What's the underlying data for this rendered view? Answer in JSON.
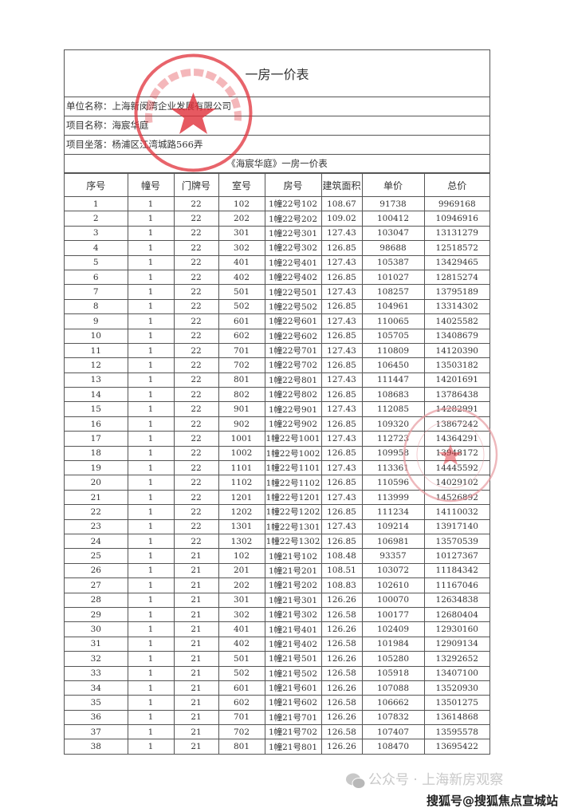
{
  "document": {
    "title": "一房一价表",
    "company_line": "单位名称：上海新闵湾企业发展有限公司",
    "project_line": "项目名称：海宸华庭",
    "location_line": "项目坐落：杨浦区江湾城路566弄",
    "subtitle": "《海宸华庭》一房一价表",
    "seal_color": "#e0303a",
    "seal_text": "上海新闵湾企业发展有限公司"
  },
  "table": {
    "headers": [
      "序号",
      "幢号",
      "门牌号",
      "室号",
      "房号",
      "建筑面积",
      "单价",
      "总价"
    ],
    "rows": [
      [
        "1",
        "1",
        "22",
        "102",
        "1幢22号102",
        "108.67",
        "91738",
        "9969168"
      ],
      [
        "2",
        "1",
        "22",
        "202",
        "1幢22号202",
        "109.02",
        "100412",
        "10946916"
      ],
      [
        "3",
        "1",
        "22",
        "301",
        "1幢22号301",
        "127.43",
        "103047",
        "13131279"
      ],
      [
        "4",
        "1",
        "22",
        "302",
        "1幢22号302",
        "126.85",
        "98688",
        "12518572"
      ],
      [
        "5",
        "1",
        "22",
        "401",
        "1幢22号401",
        "127.43",
        "105387",
        "13429465"
      ],
      [
        "6",
        "1",
        "22",
        "402",
        "1幢22号402",
        "126.85",
        "101027",
        "12815274"
      ],
      [
        "7",
        "1",
        "22",
        "501",
        "1幢22号501",
        "127.43",
        "108257",
        "13795189"
      ],
      [
        "8",
        "1",
        "22",
        "502",
        "1幢22号502",
        "126.85",
        "104961",
        "13314302"
      ],
      [
        "9",
        "1",
        "22",
        "601",
        "1幢22号601",
        "127.43",
        "110065",
        "14025582"
      ],
      [
        "10",
        "1",
        "22",
        "602",
        "1幢22号602",
        "126.85",
        "105705",
        "13408679"
      ],
      [
        "11",
        "1",
        "22",
        "701",
        "1幢22号701",
        "127.43",
        "110809",
        "14120390"
      ],
      [
        "12",
        "1",
        "22",
        "702",
        "1幢22号702",
        "126.85",
        "106450",
        "13503182"
      ],
      [
        "13",
        "1",
        "22",
        "801",
        "1幢22号801",
        "127.43",
        "111447",
        "14201691"
      ],
      [
        "14",
        "1",
        "22",
        "802",
        "1幢22号802",
        "126.85",
        "108683",
        "13786438"
      ],
      [
        "15",
        "1",
        "22",
        "901",
        "1幢22号901",
        "127.43",
        "112085",
        "14282991"
      ],
      [
        "16",
        "1",
        "22",
        "902",
        "1幢22号902",
        "126.85",
        "109320",
        "13867242"
      ],
      [
        "17",
        "1",
        "22",
        "1001",
        "1幢22号1001",
        "127.43",
        "112723",
        "14364291"
      ],
      [
        "18",
        "1",
        "22",
        "1002",
        "1幢22号1002",
        "126.85",
        "109958",
        "13948172"
      ],
      [
        "19",
        "1",
        "22",
        "1101",
        "1幢22号1101",
        "127.43",
        "113361",
        "14445592"
      ],
      [
        "20",
        "1",
        "22",
        "1102",
        "1幢22号1102",
        "126.85",
        "110596",
        "14029102"
      ],
      [
        "21",
        "1",
        "22",
        "1201",
        "1幢22号1201",
        "127.43",
        "113999",
        "14526892"
      ],
      [
        "22",
        "1",
        "22",
        "1202",
        "1幢22号1202",
        "126.85",
        "111234",
        "14110032"
      ],
      [
        "23",
        "1",
        "22",
        "1301",
        "1幢22号1301",
        "127.43",
        "109214",
        "13917140"
      ],
      [
        "24",
        "1",
        "22",
        "1302",
        "1幢22号1302",
        "126.85",
        "106981",
        "13570539"
      ],
      [
        "25",
        "1",
        "21",
        "102",
        "1幢21号102",
        "108.48",
        "93357",
        "10127367"
      ],
      [
        "26",
        "1",
        "21",
        "201",
        "1幢21号201",
        "108.51",
        "103072",
        "11184342"
      ],
      [
        "27",
        "1",
        "21",
        "202",
        "1幢21号202",
        "108.83",
        "102610",
        "11167046"
      ],
      [
        "28",
        "1",
        "21",
        "301",
        "1幢21号301",
        "126.26",
        "100070",
        "12634838"
      ],
      [
        "29",
        "1",
        "21",
        "302",
        "1幢21号302",
        "126.58",
        "100177",
        "12680404"
      ],
      [
        "30",
        "1",
        "21",
        "401",
        "1幢21号401",
        "126.26",
        "102409",
        "12930160"
      ],
      [
        "31",
        "1",
        "21",
        "402",
        "1幢21号402",
        "126.58",
        "101984",
        "12909134"
      ],
      [
        "32",
        "1",
        "21",
        "501",
        "1幢21号501",
        "126.26",
        "105280",
        "13292652"
      ],
      [
        "33",
        "1",
        "21",
        "502",
        "1幢21号502",
        "126.58",
        "105918",
        "13407100"
      ],
      [
        "34",
        "1",
        "21",
        "601",
        "1幢21号601",
        "126.26",
        "107088",
        "13520930"
      ],
      [
        "35",
        "1",
        "21",
        "602",
        "1幢21号602",
        "126.58",
        "106662",
        "13501275"
      ],
      [
        "36",
        "1",
        "21",
        "701",
        "1幢21号701",
        "126.26",
        "107832",
        "13614868"
      ],
      [
        "37",
        "1",
        "21",
        "702",
        "1幢21号702",
        "126.58",
        "107407",
        "13595578"
      ],
      [
        "38",
        "1",
        "21",
        "801",
        "1幢21号801",
        "126.26",
        "108470",
        "13695422"
      ]
    ]
  },
  "watermark": {
    "wechat_line": "公众号 · 上海新房观察",
    "sohu_line": "搜狐号@搜狐焦点宣城站",
    "icon": "wechat-icon"
  }
}
